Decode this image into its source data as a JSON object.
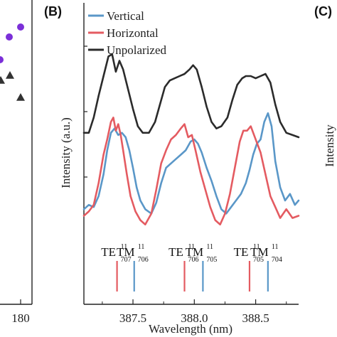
{
  "left_panel": {
    "x_tick_label": "180",
    "purple_points": [
      [
        29,
        38
      ],
      [
        13,
        52
      ],
      [
        0,
        84
      ]
    ],
    "triangle_points": [
      [
        14,
        106
      ],
      [
        29,
        137
      ],
      [
        1,
        113
      ]
    ]
  },
  "panel_b": {
    "letter": "(B)",
    "chart_data": {
      "type": "line",
      "title": "",
      "xlabel": "Wavelength (nm)",
      "ylabel": "Intensity (a.u.)",
      "xlim": [
        387.1,
        388.85
      ],
      "ylim": [
        0,
        1
      ],
      "x_ticks": [
        "387.5",
        "388.0",
        "388.5"
      ],
      "x_tick_values": [
        387.5,
        388.0,
        388.5
      ],
      "legend": {
        "position": "top-left"
      },
      "series": [
        {
          "name": "Vertical",
          "color": "#5a97c8",
          "x": [
            387.1,
            387.14,
            387.18,
            387.22,
            387.26,
            387.29,
            387.32,
            387.35,
            387.38,
            387.41,
            387.44,
            387.47,
            387.5,
            387.53,
            387.56,
            387.6,
            387.65,
            387.69,
            387.73,
            387.77,
            387.81,
            387.85,
            387.89,
            387.93,
            387.97,
            388.0,
            388.03,
            388.06,
            388.1,
            388.14,
            388.18,
            388.22,
            388.26,
            388.3,
            388.34,
            388.38,
            388.42,
            388.45,
            388.48,
            388.51,
            388.54,
            388.57,
            388.6,
            388.63,
            388.66,
            388.7,
            388.74,
            388.78,
            388.82,
            388.85
          ],
          "y": [
            0.1,
            0.12,
            0.11,
            0.16,
            0.26,
            0.37,
            0.45,
            0.47,
            0.44,
            0.45,
            0.43,
            0.37,
            0.29,
            0.2,
            0.14,
            0.1,
            0.08,
            0.13,
            0.22,
            0.29,
            0.31,
            0.33,
            0.35,
            0.37,
            0.41,
            0.42,
            0.4,
            0.36,
            0.29,
            0.23,
            0.16,
            0.1,
            0.08,
            0.11,
            0.14,
            0.17,
            0.22,
            0.28,
            0.35,
            0.4,
            0.42,
            0.5,
            0.54,
            0.48,
            0.32,
            0.2,
            0.14,
            0.17,
            0.12,
            0.14
          ]
        },
        {
          "name": "Horizontal",
          "color": "#e45b61",
          "x": [
            387.1,
            387.14,
            387.18,
            387.22,
            387.26,
            387.29,
            387.32,
            387.34,
            387.36,
            387.38,
            387.4,
            387.42,
            387.45,
            387.48,
            387.52,
            387.56,
            387.6,
            387.65,
            387.69,
            387.73,
            387.77,
            387.81,
            387.85,
            387.89,
            387.92,
            387.95,
            387.98,
            388.01,
            388.05,
            388.09,
            388.13,
            388.17,
            388.21,
            388.25,
            388.29,
            388.33,
            388.37,
            388.4,
            388.43,
            388.46,
            388.5,
            388.54,
            388.58,
            388.62,
            388.66,
            388.7,
            388.75,
            388.8,
            388.85
          ],
          "y": [
            0.07,
            0.09,
            0.12,
            0.22,
            0.35,
            0.42,
            0.5,
            0.52,
            0.46,
            0.49,
            0.44,
            0.37,
            0.26,
            0.16,
            0.09,
            0.05,
            0.03,
            0.08,
            0.19,
            0.31,
            0.37,
            0.42,
            0.44,
            0.47,
            0.49,
            0.43,
            0.44,
            0.37,
            0.27,
            0.19,
            0.11,
            0.05,
            0.03,
            0.08,
            0.17,
            0.29,
            0.41,
            0.46,
            0.46,
            0.48,
            0.42,
            0.36,
            0.26,
            0.16,
            0.11,
            0.06,
            0.1,
            0.06,
            0.07
          ]
        },
        {
          "name": "Unpolarized",
          "color": "#2b2b2b",
          "x": [
            387.1,
            387.14,
            387.18,
            387.22,
            387.26,
            387.3,
            387.33,
            387.36,
            387.39,
            387.42,
            387.46,
            387.5,
            387.54,
            387.58,
            387.63,
            387.68,
            387.72,
            387.76,
            387.8,
            387.84,
            387.88,
            387.92,
            387.96,
            387.99,
            388.02,
            388.06,
            388.1,
            388.14,
            388.18,
            388.22,
            388.27,
            388.31,
            388.35,
            388.39,
            388.42,
            388.46,
            388.5,
            388.54,
            388.58,
            388.62,
            388.66,
            388.7,
            388.75,
            388.8,
            388.85
          ],
          "y": [
            0.45,
            0.45,
            0.52,
            0.62,
            0.71,
            0.8,
            0.81,
            0.73,
            0.78,
            0.74,
            0.65,
            0.56,
            0.48,
            0.45,
            0.45,
            0.5,
            0.58,
            0.66,
            0.69,
            0.7,
            0.71,
            0.72,
            0.74,
            0.76,
            0.74,
            0.66,
            0.57,
            0.5,
            0.47,
            0.48,
            0.52,
            0.6,
            0.67,
            0.7,
            0.71,
            0.71,
            0.7,
            0.71,
            0.72,
            0.68,
            0.58,
            0.5,
            0.45,
            0.44,
            0.43
          ]
        }
      ],
      "mode_markers": [
        {
          "base": "TE",
          "sup": "11",
          "sub": "707",
          "x": 387.37,
          "color": "#e45b61"
        },
        {
          "base": "TM",
          "sup": "11",
          "sub": "706",
          "x": 387.51,
          "color": "#5a97c8"
        },
        {
          "base": "TE",
          "sup": "11",
          "sub": "706",
          "x": 387.92,
          "color": "#e45b61"
        },
        {
          "base": "TM",
          "sup": "11",
          "sub": "705",
          "x": 388.07,
          "color": "#5a97c8"
        },
        {
          "base": "TE",
          "sup": "11",
          "sub": "705",
          "x": 388.45,
          "color": "#e45b61"
        },
        {
          "base": "TM",
          "sup": "11",
          "sub": "704",
          "x": 388.6,
          "color": "#5a97c8"
        }
      ]
    }
  },
  "right_panel": {
    "letter": "(C)",
    "ylabel": "Intensity"
  }
}
